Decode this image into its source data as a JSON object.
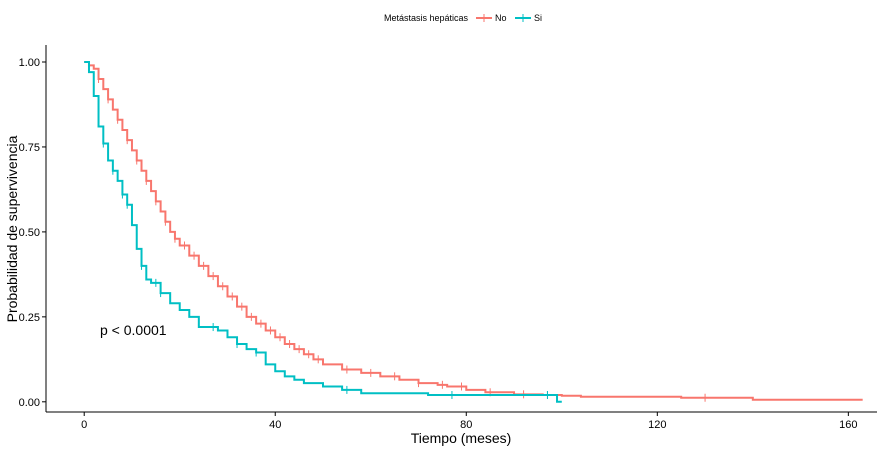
{
  "chart_data": {
    "type": "line",
    "title": "",
    "xlabel": "Tiempo (meses)",
    "ylabel": "Probabilidad de supervivencia",
    "xlim": [
      -8,
      166
    ],
    "ylim": [
      -0.03,
      1.05
    ],
    "x_ticks": [
      0,
      40,
      80,
      120,
      160
    ],
    "x_tick_labels": [
      "0",
      "40",
      "80",
      "120",
      "160"
    ],
    "y_ticks": [
      0,
      0.25,
      0.5,
      0.75,
      1
    ],
    "y_tick_labels": [
      "0.00",
      "0.25",
      "0.50",
      "0.75",
      "1.00"
    ],
    "grid": false,
    "legend": {
      "title": "Metástasis hepáticas",
      "position": "top",
      "entries": [
        "No",
        "Si"
      ]
    },
    "annotation": {
      "text": "p < 0.0001",
      "x": 3,
      "y": 0.19
    },
    "series": [
      {
        "name": "No",
        "color": "#F8766D",
        "points": [
          [
            0,
            1.0
          ],
          [
            1,
            0.99
          ],
          [
            2,
            0.98
          ],
          [
            3,
            0.95
          ],
          [
            4,
            0.92
          ],
          [
            5,
            0.89
          ],
          [
            6,
            0.86
          ],
          [
            7,
            0.83
          ],
          [
            8,
            0.8
          ],
          [
            9,
            0.77
          ],
          [
            10,
            0.74
          ],
          [
            11,
            0.71
          ],
          [
            12,
            0.68
          ],
          [
            13,
            0.65
          ],
          [
            14,
            0.62
          ],
          [
            15,
            0.59
          ],
          [
            16,
            0.56
          ],
          [
            17,
            0.53
          ],
          [
            18,
            0.5
          ],
          [
            19,
            0.48
          ],
          [
            20,
            0.46
          ],
          [
            22,
            0.43
          ],
          [
            24,
            0.4
          ],
          [
            26,
            0.37
          ],
          [
            28,
            0.34
          ],
          [
            30,
            0.31
          ],
          [
            32,
            0.28
          ],
          [
            34,
            0.25
          ],
          [
            36,
            0.23
          ],
          [
            38,
            0.21
          ],
          [
            40,
            0.19
          ],
          [
            42,
            0.17
          ],
          [
            44,
            0.155
          ],
          [
            46,
            0.14
          ],
          [
            48,
            0.125
          ],
          [
            50,
            0.11
          ],
          [
            54,
            0.095
          ],
          [
            58,
            0.085
          ],
          [
            62,
            0.075
          ],
          [
            66,
            0.065
          ],
          [
            70,
            0.055
          ],
          [
            74,
            0.05
          ],
          [
            76,
            0.045
          ],
          [
            80,
            0.035
          ],
          [
            84,
            0.028
          ],
          [
            90,
            0.022
          ],
          [
            96,
            0.02
          ],
          [
            100,
            0.018
          ],
          [
            104,
            0.015
          ],
          [
            125,
            0.012
          ],
          [
            140,
            0.006
          ],
          [
            163,
            0.006
          ]
        ],
        "censored_x": [
          3,
          5,
          7,
          9,
          11,
          13,
          15,
          17,
          19,
          21,
          23,
          25,
          27,
          29,
          31,
          33,
          35,
          37,
          39,
          41,
          43,
          45,
          47,
          49,
          55,
          60,
          65,
          70,
          75,
          79,
          85,
          92,
          97,
          130
        ]
      },
      {
        "name": "Si",
        "color": "#00BFC4",
        "points": [
          [
            0,
            1.0
          ],
          [
            1,
            0.97
          ],
          [
            2,
            0.9
          ],
          [
            3,
            0.81
          ],
          [
            4,
            0.76
          ],
          [
            5,
            0.71
          ],
          [
            6,
            0.68
          ],
          [
            7,
            0.65
          ],
          [
            8,
            0.61
          ],
          [
            9,
            0.58
          ],
          [
            10,
            0.52
          ],
          [
            11,
            0.45
          ],
          [
            12,
            0.4
          ],
          [
            13,
            0.36
          ],
          [
            14,
            0.35
          ],
          [
            16,
            0.32
          ],
          [
            18,
            0.29
          ],
          [
            20,
            0.27
          ],
          [
            22,
            0.25
          ],
          [
            24,
            0.22
          ],
          [
            28,
            0.21
          ],
          [
            30,
            0.19
          ],
          [
            32,
            0.17
          ],
          [
            34,
            0.155
          ],
          [
            36,
            0.145
          ],
          [
            38,
            0.11
          ],
          [
            40,
            0.09
          ],
          [
            42,
            0.075
          ],
          [
            44,
            0.065
          ],
          [
            46,
            0.055
          ],
          [
            50,
            0.045
          ],
          [
            54,
            0.035
          ],
          [
            58,
            0.025
          ],
          [
            70,
            0.025
          ],
          [
            72,
            0.02
          ],
          [
            98,
            0.02
          ],
          [
            99,
            0.0
          ],
          [
            100,
            0.0
          ]
        ],
        "censored_x": [
          4,
          6,
          8,
          9,
          12,
          15,
          16,
          27,
          32,
          36,
          55,
          77,
          97
        ]
      }
    ]
  }
}
